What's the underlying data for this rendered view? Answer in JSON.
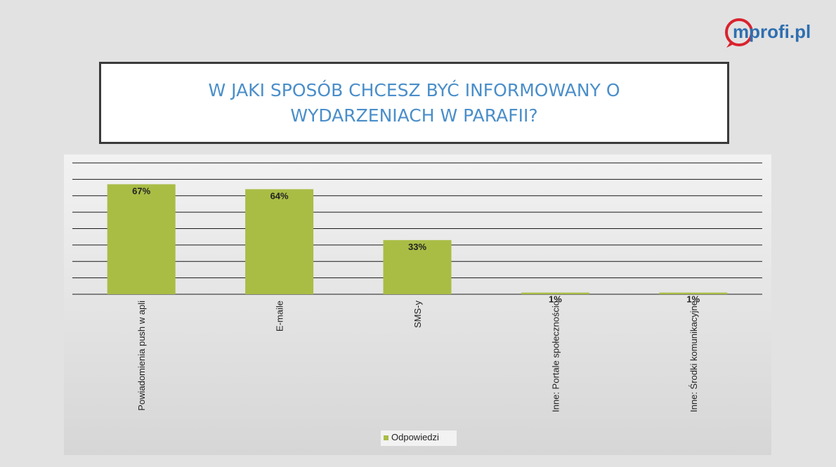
{
  "logo": {
    "text": "mprofi.pl",
    "brand_color": "#d9232e",
    "text_color": "#2e6fb0"
  },
  "title": "W JAKI SPOSÓB CHCESZ BYĆ INFORMOWANY O WYDARZENIACH W PARAFII?",
  "colors": {
    "title": "#4a8ec9",
    "bar": "#a9bd45",
    "grid": "#1a1a1a"
  },
  "chart_data": {
    "type": "bar",
    "categories": [
      "Powiadomienia push w apli",
      "E-maile",
      "SMS-y",
      "Inne: Portale społecznościo",
      "Inne: Środki komunikacyjne"
    ],
    "series": [
      {
        "name": "Odpowiedzi",
        "values": [
          67,
          64,
          33,
          1,
          1
        ]
      }
    ],
    "data_labels": [
      "67%",
      "64%",
      "33%",
      "1%",
      "1%"
    ],
    "ylim": [
      0,
      80
    ],
    "grid": true,
    "legend_position": "bottom",
    "category_label_rotation": "vertical"
  }
}
